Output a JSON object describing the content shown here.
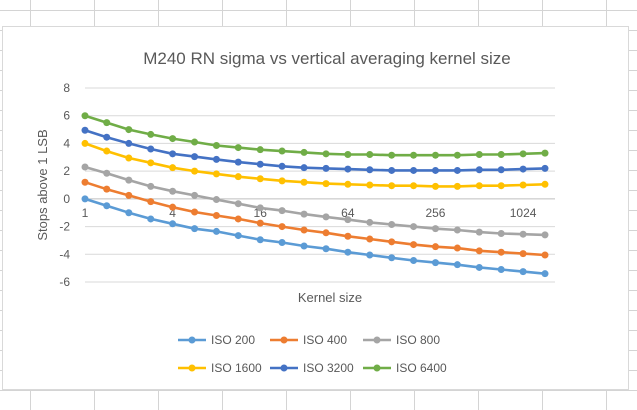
{
  "chart_data": {
    "type": "line",
    "title": "M240 RN sigma vs vertical averaging kernel size",
    "xlabel": "Kernel size",
    "ylabel": "Stops above 1 LSB",
    "x_scale": "log2",
    "x": [
      1,
      1.41,
      2,
      2.83,
      4,
      5.66,
      8,
      11.3,
      16,
      22.6,
      32,
      45.3,
      64,
      90.5,
      128,
      181,
      256,
      362,
      512,
      724,
      1024,
      1448
    ],
    "x_tick_labels": [
      "1",
      "4",
      "16",
      "64",
      "256",
      "1024"
    ],
    "x_tick_values": [
      1,
      4,
      16,
      64,
      256,
      1024
    ],
    "ylim": [
      -6,
      8
    ],
    "y_ticks": [
      -6,
      -4,
      -2,
      0,
      2,
      4,
      6,
      8
    ],
    "grid": "horizontal",
    "legend_position": "bottom",
    "series": [
      {
        "name": "ISO 200",
        "color": "#5b9bd5",
        "values": [
          0.0,
          -0.5,
          -1.0,
          -1.45,
          -1.8,
          -2.15,
          -2.35,
          -2.65,
          -2.95,
          -3.15,
          -3.4,
          -3.6,
          -3.85,
          -4.05,
          -4.25,
          -4.45,
          -4.6,
          -4.75,
          -4.95,
          -5.1,
          -5.25,
          -5.4
        ]
      },
      {
        "name": "ISO 400",
        "color": "#ed7d31",
        "values": [
          1.2,
          0.7,
          0.25,
          -0.2,
          -0.6,
          -0.95,
          -1.2,
          -1.45,
          -1.75,
          -2.0,
          -2.25,
          -2.45,
          -2.7,
          -2.9,
          -3.1,
          -3.3,
          -3.45,
          -3.55,
          -3.75,
          -3.85,
          -3.95,
          -4.05
        ]
      },
      {
        "name": "ISO 800",
        "color": "#a5a5a5",
        "values": [
          2.3,
          1.85,
          1.35,
          0.9,
          0.55,
          0.25,
          -0.05,
          -0.35,
          -0.65,
          -0.85,
          -1.1,
          -1.3,
          -1.5,
          -1.7,
          -1.85,
          -2.0,
          -2.15,
          -2.25,
          -2.4,
          -2.5,
          -2.55,
          -2.6
        ]
      },
      {
        "name": "ISO 1600",
        "color": "#ffc000",
        "values": [
          4.0,
          3.45,
          2.95,
          2.6,
          2.25,
          2.0,
          1.8,
          1.6,
          1.45,
          1.3,
          1.2,
          1.1,
          1.05,
          1.0,
          0.95,
          0.95,
          0.9,
          0.9,
          0.95,
          0.95,
          1.0,
          1.05
        ]
      },
      {
        "name": "ISO 3200",
        "color": "#4472c4",
        "values": [
          4.95,
          4.45,
          4.0,
          3.6,
          3.25,
          3.05,
          2.85,
          2.65,
          2.5,
          2.35,
          2.25,
          2.2,
          2.15,
          2.1,
          2.05,
          2.05,
          2.05,
          2.05,
          2.1,
          2.1,
          2.15,
          2.2
        ]
      },
      {
        "name": "ISO 6400",
        "color": "#70ad47",
        "values": [
          6.0,
          5.5,
          5.0,
          4.65,
          4.35,
          4.1,
          3.85,
          3.7,
          3.55,
          3.45,
          3.35,
          3.25,
          3.2,
          3.2,
          3.15,
          3.15,
          3.15,
          3.15,
          3.2,
          3.2,
          3.25,
          3.3
        ]
      }
    ]
  }
}
